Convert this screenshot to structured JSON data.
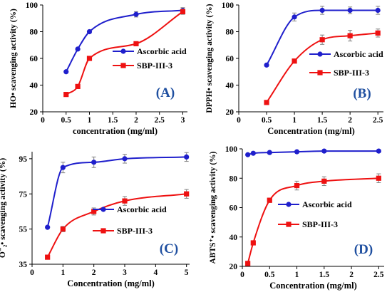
{
  "colors": {
    "ascorbic": "#1f1fcc",
    "sbp": "#ee1111",
    "axis": "#000000",
    "error": "#808080"
  },
  "chart_data": [
    {
      "type": "line",
      "panel_label": "(A)",
      "panel_label_color": "#1f4fa0",
      "xlabel": "concentration (mg/ml)",
      "ylabel": "HO• scavenging activity (%)",
      "xlim": [
        0,
        3.1
      ],
      "ylim": [
        20,
        100
      ],
      "xticks": [
        0,
        0.5,
        1,
        1.5,
        2,
        2.5,
        3
      ],
      "xtick_labels": [
        "0",
        "0.5",
        "1",
        "1.5",
        "2",
        "2.5",
        "3"
      ],
      "yticks": [
        20,
        40,
        60,
        80,
        100
      ],
      "ytick_labels": [
        "20",
        "40",
        "60",
        "80",
        "100"
      ],
      "legend_position": "center-right",
      "series": [
        {
          "name": "Ascorbic acid",
          "marker": "circle",
          "x": [
            0.5,
            0.75,
            1,
            2,
            3
          ],
          "values": [
            50,
            67,
            80,
            93,
            96
          ],
          "err": [
            0,
            0,
            1,
            2,
            2
          ]
        },
        {
          "name": "SBP-III-3",
          "marker": "square",
          "x": [
            0.5,
            0.75,
            1,
            2,
            3
          ],
          "values": [
            33,
            39,
            60,
            71,
            95
          ],
          "err": [
            0,
            0,
            1,
            1,
            2
          ]
        }
      ]
    },
    {
      "type": "line",
      "panel_label": "(B)",
      "panel_label_color": "#1f4fa0",
      "xlabel": "Concentration (mg/ml)",
      "ylabel": "DPPH• scavenging activity (%)",
      "xlim": [
        0,
        2.6
      ],
      "ylim": [
        20,
        100
      ],
      "xticks": [
        0,
        0.5,
        1,
        1.5,
        2,
        2.5
      ],
      "xtick_labels": [
        "0",
        "0.5",
        "1",
        "1.5",
        "2",
        "2.5"
      ],
      "yticks": [
        20,
        40,
        60,
        80,
        100
      ],
      "ytick_labels": [
        "20",
        "40",
        "60",
        "80",
        "100"
      ],
      "legend_position": "center-right",
      "series": [
        {
          "name": "Ascorbic acid",
          "marker": "circle",
          "x": [
            0.5,
            1,
            1.5,
            2,
            2.5
          ],
          "values": [
            55,
            91,
            96,
            96,
            96
          ],
          "err": [
            0,
            3,
            3,
            2.5,
            3
          ]
        },
        {
          "name": "SBP-III-3",
          "marker": "square",
          "x": [
            0.5,
            1,
            1.5,
            2,
            2.5
          ],
          "values": [
            27,
            58,
            74,
            77,
            79
          ],
          "err": [
            0,
            0,
            3.5,
            4,
            3
          ]
        }
      ]
    },
    {
      "type": "line",
      "panel_label": "(C)",
      "panel_label_color": "#1f4fa0",
      "xlabel": "Concentration (mg/ml)",
      "ylabel": "O⁻₂• scavenging activity (%)",
      "xlim": [
        0,
        5.1
      ],
      "ylim": [
        35,
        99
      ],
      "xticks": [
        0,
        1,
        2,
        3,
        4,
        5
      ],
      "xtick_labels": [
        "0",
        "1",
        "2",
        "3",
        "4",
        "5"
      ],
      "yticks": [
        35,
        55,
        75,
        95
      ],
      "ytick_labels": [
        "35",
        "55",
        "75",
        "95"
      ],
      "legend_position": "center-left",
      "series": [
        {
          "name": "Ascorbic acid",
          "marker": "circle",
          "x": [
            0.5,
            1,
            2,
            3,
            5
          ],
          "values": [
            56,
            90,
            93,
            95,
            96
          ],
          "err": [
            0,
            3,
            3,
            2.5,
            2.5
          ]
        },
        {
          "name": "SBP-III-3",
          "marker": "square",
          "x": [
            0.5,
            1,
            2,
            3,
            5
          ],
          "values": [
            39,
            55,
            65,
            71,
            75
          ],
          "err": [
            1,
            1.5,
            2,
            2.5,
            2.5
          ]
        }
      ]
    },
    {
      "type": "line",
      "panel_label": "(D)",
      "panel_label_color": "#1f4fa0",
      "xlabel": "Concentration (mg/ml)",
      "ylabel": "ABTS⁺• scavenging activity (%)",
      "xlim": [
        0,
        2.6
      ],
      "ylim": [
        20,
        100
      ],
      "xticks": [
        0,
        0.5,
        1,
        1.5,
        2,
        2.5
      ],
      "xtick_labels": [
        "0",
        "0.5",
        "1",
        "1.5",
        "2",
        "2.5"
      ],
      "yticks": [
        20,
        40,
        60,
        80,
        100
      ],
      "ytick_labels": [
        "20",
        "40",
        "60",
        "80",
        "100"
      ],
      "legend_position": "center-right",
      "series": [
        {
          "name": "Ascorbic acid",
          "marker": "circle",
          "x": [
            0.1,
            0.2,
            0.5,
            1,
            1.5,
            2.5
          ],
          "values": [
            96,
            97,
            97.5,
            98,
            98.5,
            98.5
          ],
          "err": [
            0,
            0,
            0,
            0,
            0,
            0
          ]
        },
        {
          "name": "SBP-III-3",
          "marker": "square",
          "x": [
            0.1,
            0.2,
            0.5,
            1,
            1.5,
            2.5
          ],
          "values": [
            22,
            36,
            65,
            75,
            78,
            80
          ],
          "err": [
            0,
            0,
            1.5,
            3,
            3,
            3
          ]
        }
      ]
    }
  ]
}
